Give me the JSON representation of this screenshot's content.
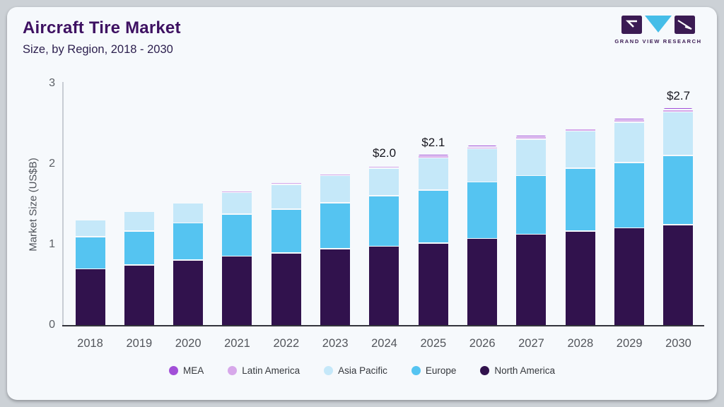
{
  "header": {
    "title": "Aircraft Tire Market",
    "subtitle": "Size, by Region, 2018 - 2030",
    "logo_text": "GRAND VIEW RESEARCH"
  },
  "colors": {
    "north_america": "#31124d",
    "europe": "#55c4f1",
    "asia_pacific": "#c5e8f9",
    "latin_america": "#d7a8ea",
    "mea": "#a24fd8",
    "title": "#3e1162",
    "card_bg": "#f6f9fc",
    "logo_purple": "#3b1b53",
    "logo_blue": "#45bde8"
  },
  "chart_data": {
    "type": "bar",
    "stacked": true,
    "title": "Aircraft Tire Market Size, by Region, 2018 - 2030",
    "ylabel": "Market Size (US$B)",
    "ylim": [
      0,
      3
    ],
    "yticks": [
      0,
      1,
      2,
      3
    ],
    "grid": false,
    "legend_position": "bottom",
    "categories": [
      2018,
      2019,
      2020,
      2021,
      2022,
      2023,
      2024,
      2025,
      2026,
      2027,
      2028,
      2029,
      2030
    ],
    "series": [
      {
        "name": "North America",
        "color": "#31124d",
        "values": [
          0.69,
          0.74,
          0.8,
          0.85,
          0.89,
          0.94,
          0.97,
          1.01,
          1.07,
          1.12,
          1.16,
          1.2,
          1.24
        ]
      },
      {
        "name": "Europe",
        "color": "#55c4f1",
        "values": [
          0.4,
          0.42,
          0.46,
          0.52,
          0.54,
          0.57,
          0.63,
          0.66,
          0.7,
          0.73,
          0.78,
          0.81,
          0.86
        ]
      },
      {
        "name": "Asia Pacific",
        "color": "#c5e8f9",
        "values": [
          0.21,
          0.24,
          0.25,
          0.27,
          0.31,
          0.34,
          0.34,
          0.4,
          0.41,
          0.45,
          0.46,
          0.5,
          0.54
        ]
      },
      {
        "name": "Latin America",
        "color": "#d7a8ea",
        "values": [
          0.015,
          0.015,
          0.02,
          0.02,
          0.02,
          0.02,
          0.025,
          0.025,
          0.025,
          0.03,
          0.03,
          0.03,
          0.03
        ]
      },
      {
        "name": "MEA",
        "color": "#a24fd8",
        "values": [
          0.01,
          0.01,
          0.01,
          0.015,
          0.015,
          0.015,
          0.015,
          0.02,
          0.02,
          0.02,
          0.02,
          0.025,
          0.025
        ]
      }
    ],
    "legend": [
      "MEA",
      "Latin America",
      "Asia Pacific",
      "Europe",
      "North America"
    ],
    "annotations": [
      {
        "year": 2024,
        "label": "$2.0"
      },
      {
        "year": 2025,
        "label": "$2.1"
      },
      {
        "year": 2030,
        "label": "$2.7"
      }
    ]
  }
}
